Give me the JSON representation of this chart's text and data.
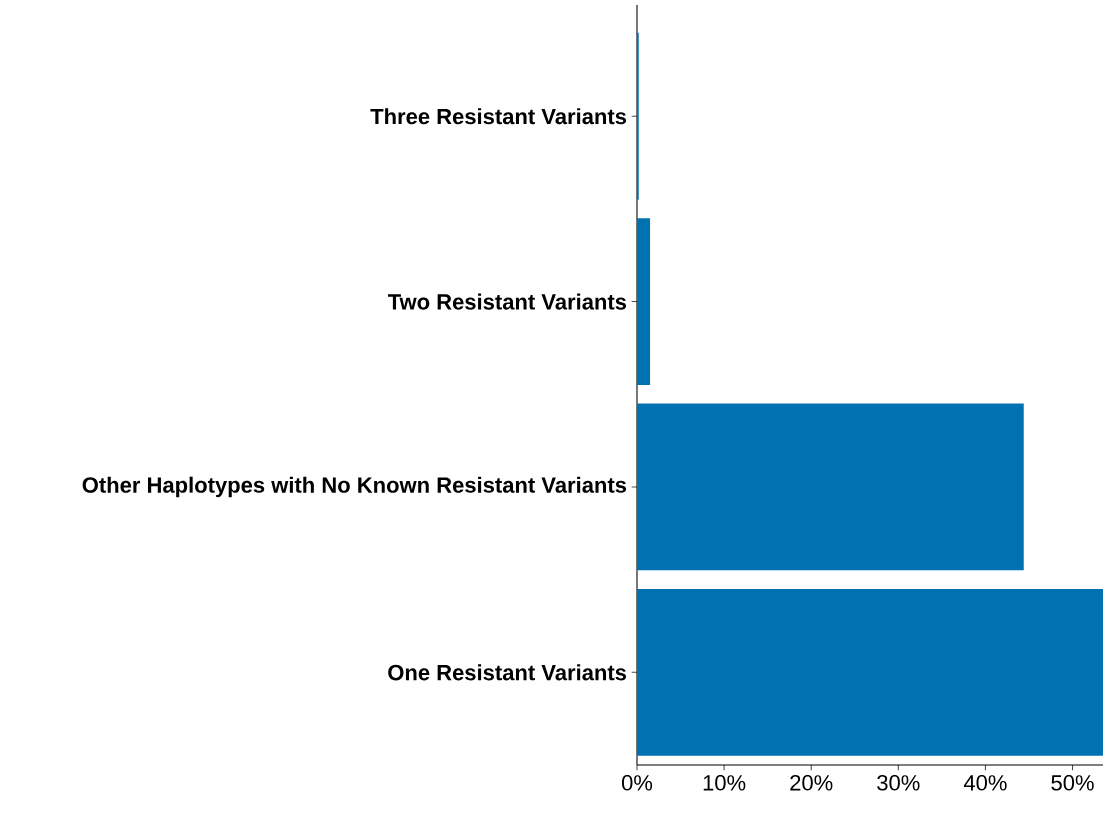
{
  "chart_data": {
    "type": "bar",
    "orientation": "horizontal",
    "categories": [
      "Three Resistant Variants",
      "Two Resistant Variants",
      "Other Haplotypes with No Known Resistant Variants",
      "One Resistant Variants"
    ],
    "values": [
      0.2,
      1.5,
      44.4,
      53.5
    ],
    "color": "#0072b2",
    "xlim": [
      0,
      53.5
    ],
    "xticks": [
      {
        "value": 0,
        "label": "0%"
      },
      {
        "value": 10,
        "label": "10%"
      },
      {
        "value": 20,
        "label": "20%"
      },
      {
        "value": 30,
        "label": "30%"
      },
      {
        "value": 40,
        "label": "40%"
      },
      {
        "value": 50,
        "label": "50%"
      }
    ],
    "grid": false
  }
}
